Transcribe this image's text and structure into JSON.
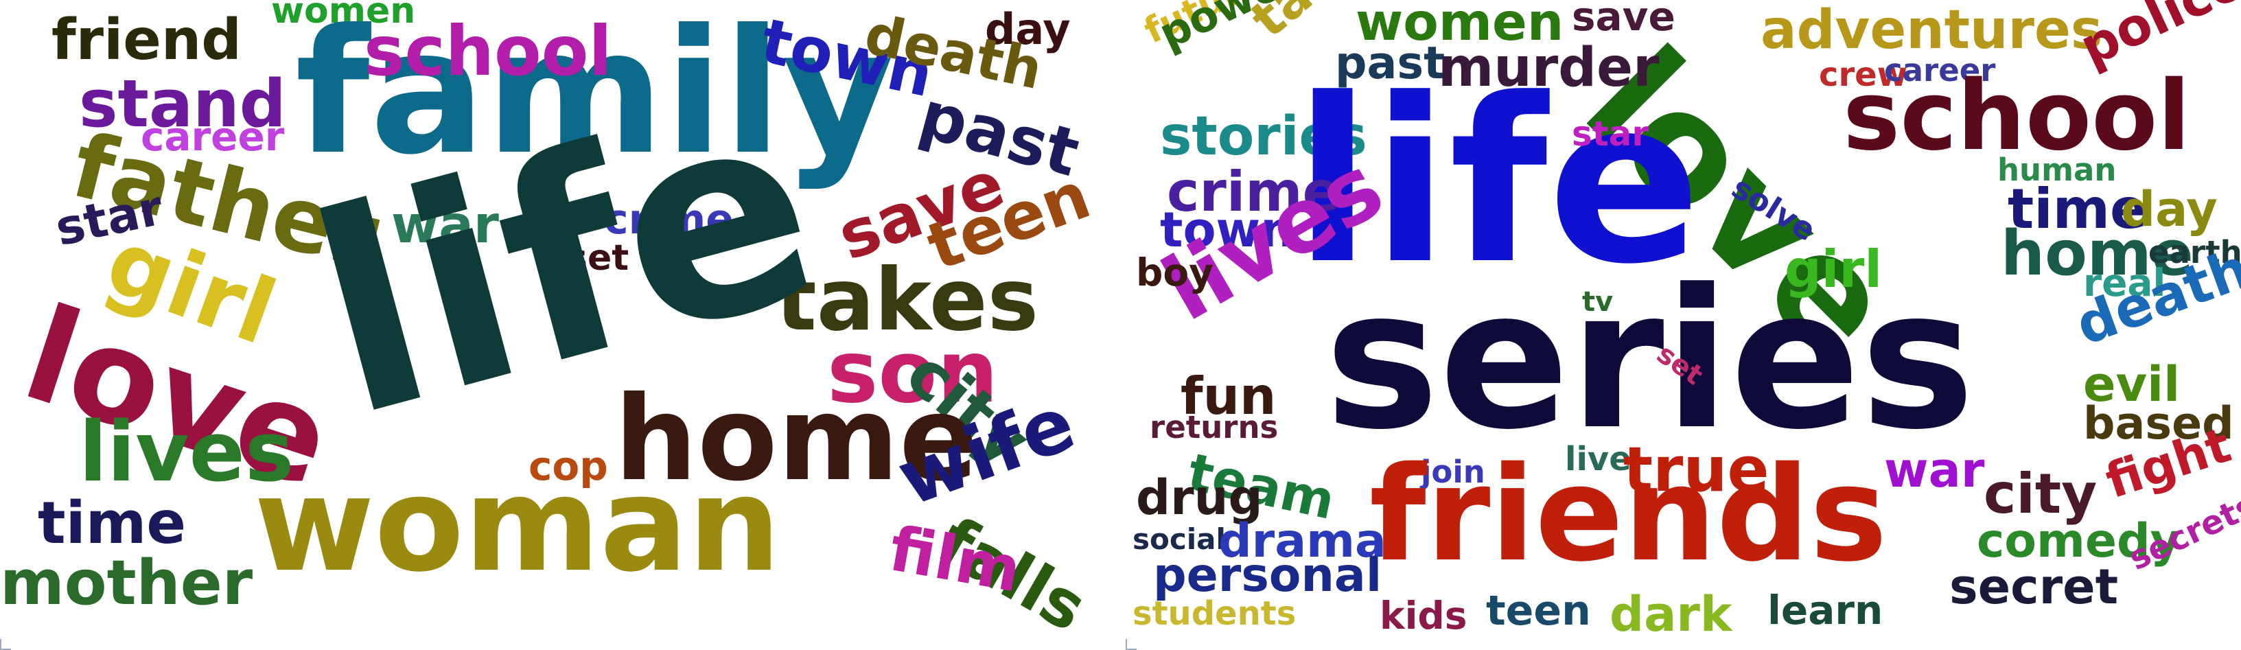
{
  "clouds": [
    {
      "id": "left",
      "words": [
        {
          "text": "friend",
          "color": "#2b2b0b"
        },
        {
          "text": "women",
          "color": "#1ea02a"
        },
        {
          "text": "family",
          "color": "#0c6a8a"
        },
        {
          "text": "school",
          "color": "#b21eaa"
        },
        {
          "text": "town",
          "color": "#2020b8"
        },
        {
          "text": "day",
          "color": "#3a1010"
        },
        {
          "text": "death",
          "color": "#6a5a10"
        },
        {
          "text": "stand",
          "color": "#6a1a9a"
        },
        {
          "text": "career",
          "color": "#c040e0"
        },
        {
          "text": "past",
          "color": "#1c1c5a"
        },
        {
          "text": "father",
          "color": "#6a6a10"
        },
        {
          "text": "war",
          "color": "#2a7a5a"
        },
        {
          "text": "crime",
          "color": "#3838b8"
        },
        {
          "text": "save",
          "color": "#a01a2a"
        },
        {
          "text": "teen",
          "color": "#9a4a10"
        },
        {
          "text": "star",
          "color": "#2a1a5a"
        },
        {
          "text": "girl",
          "color": "#d8c020"
        },
        {
          "text": "set",
          "color": "#3a1010"
        },
        {
          "text": "takes",
          "color": "#3a3a10"
        },
        {
          "text": "love",
          "color": "#9a1040"
        },
        {
          "text": "life",
          "color": "#0e3a3a"
        },
        {
          "text": "son",
          "color": "#c8206a"
        },
        {
          "text": "city",
          "color": "#205a3a"
        },
        {
          "text": "home",
          "color": "#3a1a10"
        },
        {
          "text": "lives",
          "color": "#2a7a2a"
        },
        {
          "text": "cop",
          "color": "#b84a10"
        },
        {
          "text": "wife",
          "color": "#1a1a7a"
        },
        {
          "text": "time",
          "color": "#1a1a5a"
        },
        {
          "text": "woman",
          "color": "#9a8a10"
        },
        {
          "text": "falls",
          "color": "#2a5a10"
        },
        {
          "text": "film",
          "color": "#c020a0"
        },
        {
          "text": "mother",
          "color": "#2a6a2a"
        }
      ]
    },
    {
      "id": "right",
      "words": [
        {
          "text": "future",
          "color": "#d8b820"
        },
        {
          "text": "power",
          "color": "#2a6a10"
        },
        {
          "text": "takes",
          "color": "#b8a020"
        },
        {
          "text": "women",
          "color": "#2a7a10"
        },
        {
          "text": "save",
          "color": "#4a1a3a"
        },
        {
          "text": "love",
          "color": "#1a6a10"
        },
        {
          "text": "adventures",
          "color": "#b8981a"
        },
        {
          "text": "police",
          "color": "#a0102a"
        },
        {
          "text": "past",
          "color": "#1a3a5a"
        },
        {
          "text": "murder",
          "color": "#3a1a3a"
        },
        {
          "text": "crew",
          "color": "#c02a2a"
        },
        {
          "text": "career",
          "color": "#3a3a9a"
        },
        {
          "text": "school",
          "color": "#5a0a1a"
        },
        {
          "text": "stories",
          "color": "#1a8a8a"
        },
        {
          "text": "life",
          "color": "#1010d0"
        },
        {
          "text": "star",
          "color": "#c020c0"
        },
        {
          "text": "human",
          "color": "#2a8a4a"
        },
        {
          "text": "crime",
          "color": "#4a20a0"
        },
        {
          "text": "solve",
          "color": "#2a2aa0"
        },
        {
          "text": "time",
          "color": "#1a1a7a"
        },
        {
          "text": "day",
          "color": "#8a8a10"
        },
        {
          "text": "town",
          "color": "#3020c0"
        },
        {
          "text": "home",
          "color": "#1a5a4a"
        },
        {
          "text": "earth",
          "color": "#1a3a3a"
        },
        {
          "text": "lives",
          "color": "#b020c0"
        },
        {
          "text": "girl",
          "color": "#3ab820"
        },
        {
          "text": "boy",
          "color": "#3a1a10"
        },
        {
          "text": "real",
          "color": "#2a9a8a"
        },
        {
          "text": "tv",
          "color": "#2a6a2a"
        },
        {
          "text": "death",
          "color": "#1a6ab8"
        },
        {
          "text": "series",
          "color": "#0e0a3a"
        },
        {
          "text": "set",
          "color": "#c02a6a"
        },
        {
          "text": "fun",
          "color": "#3a1a10"
        },
        {
          "text": "evil",
          "color": "#4a8a10"
        },
        {
          "text": "returns",
          "color": "#5a1a3a"
        },
        {
          "text": "based",
          "color": "#4a3a10"
        },
        {
          "text": "team",
          "color": "#1a7a3a"
        },
        {
          "text": "live",
          "color": "#2a6a5a"
        },
        {
          "text": "join",
          "color": "#3a3ab8"
        },
        {
          "text": "true",
          "color": "#c0200a"
        },
        {
          "text": "war",
          "color": "#a010d0"
        },
        {
          "text": "city",
          "color": "#4a1a2a"
        },
        {
          "text": "fight",
          "color": "#c01a2a"
        },
        {
          "text": "drug",
          "color": "#2a1a1a"
        },
        {
          "text": "friends",
          "color": "#c0200a"
        },
        {
          "text": "comedy",
          "color": "#2a8a2a"
        },
        {
          "text": "social",
          "color": "#1a2a4a"
        },
        {
          "text": "drama",
          "color": "#2a3ab8"
        },
        {
          "text": "secrets",
          "color": "#b020a0"
        },
        {
          "text": "personal",
          "color": "#1a2a8a"
        },
        {
          "text": "secret",
          "color": "#1a1a3a"
        },
        {
          "text": "students",
          "color": "#c8b830"
        },
        {
          "text": "kids",
          "color": "#8a1a4a"
        },
        {
          "text": "teen",
          "color": "#1a4a6a"
        },
        {
          "text": "dark",
          "color": "#8ab820"
        },
        {
          "text": "learn",
          "color": "#1a4a3a"
        }
      ]
    }
  ]
}
